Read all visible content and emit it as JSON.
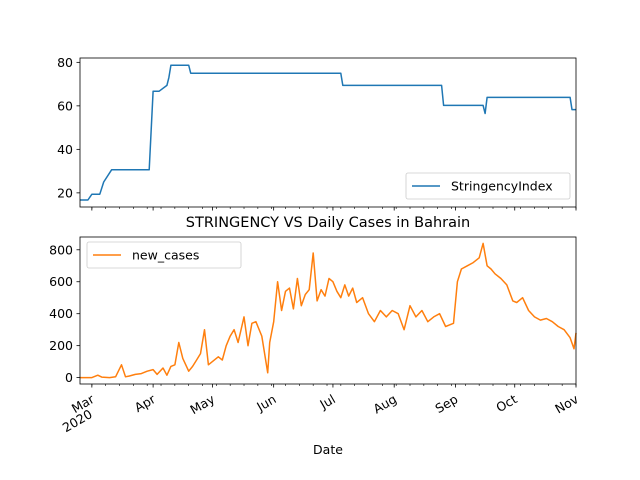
{
  "chart_data": [
    {
      "type": "line",
      "title": "",
      "xlabel": "",
      "ylabel": "",
      "xlim": [
        "2020-02-24",
        "2020-11-01"
      ],
      "ylim": [
        13.5,
        82
      ],
      "yticks": [
        20,
        40,
        60,
        80
      ],
      "series": [
        {
          "name": "StringencyIndex",
          "color": "#1f77b4",
          "x": [
            "2020-02-24",
            "2020-02-28",
            "2020-03-01",
            "2020-03-05",
            "2020-03-07",
            "2020-03-11",
            "2020-03-30",
            "2020-04-01",
            "2020-04-04",
            "2020-04-08",
            "2020-04-09",
            "2020-04-10",
            "2020-04-19",
            "2020-04-20",
            "2020-07-05",
            "2020-07-06",
            "2020-08-25",
            "2020-08-26",
            "2020-09-15",
            "2020-09-16",
            "2020-09-17",
            "2020-10-29",
            "2020-10-30",
            "2020-11-01"
          ],
          "y": [
            16.7,
            16.7,
            19.4,
            19.4,
            25.0,
            30.6,
            30.6,
            66.7,
            66.7,
            69.4,
            73.1,
            78.7,
            78.7,
            75.0,
            75.0,
            69.4,
            69.4,
            60.2,
            60.2,
            56.5,
            63.9,
            63.9,
            58.3,
            58.3
          ]
        }
      ],
      "legend": {
        "position": "lower right",
        "entries": [
          "StringencyIndex"
        ]
      }
    },
    {
      "type": "line",
      "title": "STRINGENCY VS Daily Cases in Bahrain",
      "xlabel": "Date",
      "ylabel": "",
      "xlim": [
        "2020-02-24",
        "2020-11-01"
      ],
      "ylim": [
        -40,
        880
      ],
      "yticks": [
        0,
        200,
        400,
        600,
        800
      ],
      "xticks": [
        {
          "date": "2020-03-01",
          "label": "Mar",
          "sublabel": "2020"
        },
        {
          "date": "2020-04-01",
          "label": "Apr"
        },
        {
          "date": "2020-05-01",
          "label": "May"
        },
        {
          "date": "2020-06-01",
          "label": "Jun"
        },
        {
          "date": "2020-07-01",
          "label": "Jul"
        },
        {
          "date": "2020-08-01",
          "label": "Aug"
        },
        {
          "date": "2020-09-01",
          "label": "Sep"
        },
        {
          "date": "2020-10-01",
          "label": "Oct"
        },
        {
          "date": "2020-11-01",
          "label": "Nov"
        }
      ],
      "series": [
        {
          "name": "new_cases",
          "color": "#ff7f0e",
          "x": [
            "2020-02-24",
            "2020-03-01",
            "2020-03-04",
            "2020-03-06",
            "2020-03-10",
            "2020-03-13",
            "2020-03-16",
            "2020-03-18",
            "2020-03-20",
            "2020-03-23",
            "2020-03-26",
            "2020-03-29",
            "2020-04-01",
            "2020-04-03",
            "2020-04-06",
            "2020-04-08",
            "2020-04-10",
            "2020-04-12",
            "2020-04-14",
            "2020-04-16",
            "2020-04-19",
            "2020-04-21",
            "2020-04-23",
            "2020-04-25",
            "2020-04-27",
            "2020-04-29",
            "2020-05-01",
            "2020-05-04",
            "2020-05-06",
            "2020-05-08",
            "2020-05-10",
            "2020-05-12",
            "2020-05-14",
            "2020-05-17",
            "2020-05-19",
            "2020-05-21",
            "2020-05-23",
            "2020-05-26",
            "2020-05-29",
            "2020-05-30",
            "2020-06-01",
            "2020-06-03",
            "2020-06-05",
            "2020-06-07",
            "2020-06-09",
            "2020-06-11",
            "2020-06-13",
            "2020-06-15",
            "2020-06-17",
            "2020-06-19",
            "2020-06-21",
            "2020-06-23",
            "2020-06-25",
            "2020-06-27",
            "2020-06-29",
            "2020-07-01",
            "2020-07-03",
            "2020-07-05",
            "2020-07-07",
            "2020-07-09",
            "2020-07-11",
            "2020-07-13",
            "2020-07-16",
            "2020-07-19",
            "2020-07-22",
            "2020-07-25",
            "2020-07-28",
            "2020-07-31",
            "2020-08-03",
            "2020-08-06",
            "2020-08-09",
            "2020-08-12",
            "2020-08-15",
            "2020-08-18",
            "2020-08-21",
            "2020-08-24",
            "2020-08-27",
            "2020-08-29",
            "2020-08-31",
            "2020-09-02",
            "2020-09-04",
            "2020-09-07",
            "2020-09-10",
            "2020-09-13",
            "2020-09-15",
            "2020-09-17",
            "2020-09-19",
            "2020-09-21",
            "2020-09-24",
            "2020-09-27",
            "2020-09-30",
            "2020-10-02",
            "2020-10-05",
            "2020-10-08",
            "2020-10-11",
            "2020-10-14",
            "2020-10-17",
            "2020-10-20",
            "2020-10-23",
            "2020-10-26",
            "2020-10-29",
            "2020-10-31",
            "2020-11-01"
          ],
          "y": [
            0,
            0,
            15,
            3,
            0,
            5,
            80,
            5,
            10,
            20,
            25,
            40,
            50,
            20,
            60,
            15,
            70,
            80,
            220,
            120,
            40,
            70,
            110,
            150,
            300,
            80,
            100,
            130,
            110,
            200,
            260,
            300,
            220,
            380,
            200,
            340,
            350,
            260,
            30,
            220,
            350,
            600,
            420,
            540,
            560,
            430,
            620,
            450,
            520,
            550,
            780,
            480,
            550,
            510,
            620,
            600,
            540,
            500,
            580,
            510,
            560,
            470,
            500,
            400,
            350,
            420,
            380,
            420,
            400,
            300,
            450,
            380,
            420,
            350,
            380,
            400,
            320,
            330,
            340,
            600,
            680,
            700,
            720,
            750,
            840,
            700,
            680,
            650,
            620,
            580,
            480,
            470,
            500,
            420,
            380,
            360,
            370,
            350,
            320,
            300,
            250,
            180,
            280
          ]
        }
      ],
      "legend": {
        "position": "upper left",
        "entries": [
          "new_cases"
        ]
      }
    }
  ]
}
